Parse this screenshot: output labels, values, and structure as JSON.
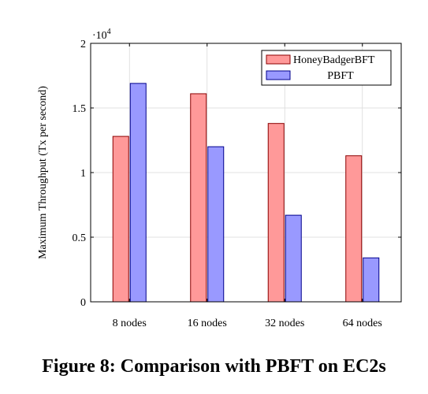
{
  "caption": "Figure 8: Comparison with PBFT on EC2s",
  "chart_data": {
    "type": "bar",
    "categories": [
      "8 nodes",
      "16 nodes",
      "32 nodes",
      "64 nodes"
    ],
    "series": [
      {
        "name": "HoneyBadgerBFT",
        "values": [
          12800,
          16100,
          13800,
          11300
        ],
        "color": "#ff9999",
        "stroke": "#8b0000"
      },
      {
        "name": "PBFT",
        "values": [
          16900,
          12000,
          6700,
          3400
        ],
        "color": "#9999ff",
        "stroke": "#00008b"
      }
    ],
    "ylabel": "Maximum Throughput (Tx per second)",
    "xlabel": "",
    "ylim": [
      0,
      20000
    ],
    "yticks": [
      {
        "value": 0,
        "label": "0"
      },
      {
        "value": 5000,
        "label": "0.5"
      },
      {
        "value": 10000,
        "label": "1"
      },
      {
        "value": 15000,
        "label": "1.5"
      },
      {
        "value": 20000,
        "label": "2"
      }
    ],
    "scale_label": {
      "prefix": "·10",
      "exponent": "4"
    },
    "grid": true,
    "legend_position": "top-right"
  }
}
